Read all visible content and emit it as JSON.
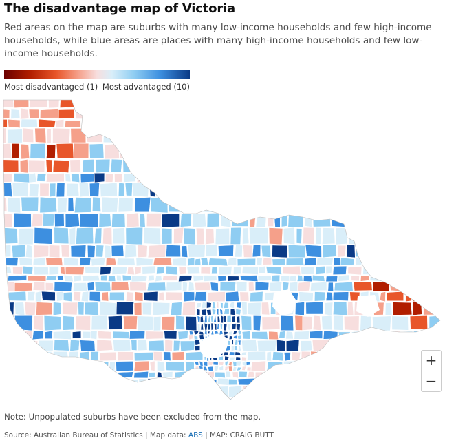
{
  "header": {
    "title": "The disadvantage map of Victoria",
    "subtitle": "Red areas on the map are suburbs with many low-income households and few high-income households, while blue areas are places with many high-income households and few low-income households."
  },
  "legend": {
    "low_label": "Most disadvantaged (1)",
    "high_label": "Most advantaged (10)",
    "scale_min": 1,
    "scale_max": 10,
    "colors": [
      "#6b0000",
      "#b11e00",
      "#e8562a",
      "#f5a08a",
      "#f7dede",
      "#d9eef9",
      "#8fcdf2",
      "#3d8fe0",
      "#0a3a86"
    ]
  },
  "map": {
    "region": "Victoria",
    "background_color": "#ffffff",
    "border_color": "#ffffff"
  },
  "zoom": {
    "in_label": "+",
    "out_label": "−"
  },
  "note": "Note: Unpopulated suburbs have been excluded from the map.",
  "source": {
    "prefix": "Source: Australian Bureau of Statistics | Map data: ",
    "link": "ABS",
    "suffix": " | MAP: CRAIG BUTT"
  }
}
